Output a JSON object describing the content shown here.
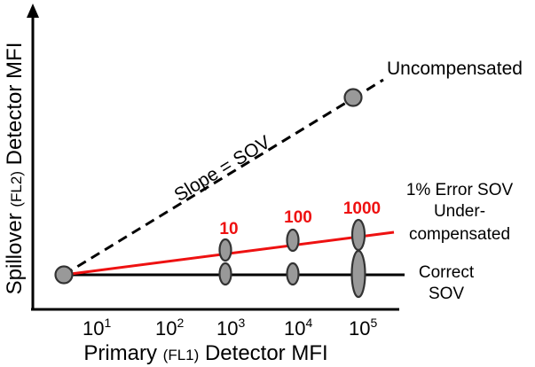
{
  "figure": {
    "y_axis_title": {
      "pre": "Spillover ",
      "mid": "(FL2)",
      "post": " Detector MFI"
    },
    "x_axis_title": {
      "pre": "Primary ",
      "mid": "(FL1)",
      "post": " Detector MFI"
    },
    "x_ticks": [
      {
        "base": "10",
        "exp": "1"
      },
      {
        "base": "10",
        "exp": "2"
      },
      {
        "base": "10",
        "exp": "3"
      },
      {
        "base": "10",
        "exp": "4"
      },
      {
        "base": "10",
        "exp": "5"
      }
    ],
    "labels": {
      "uncompensated": "Uncompensated",
      "slope": "Slope = SOV",
      "error_line1": "1% Error SOV",
      "error_line2": "Under-",
      "error_line3": "compensated",
      "correct_line1": "Correct",
      "correct_line2": "SOV"
    },
    "red_numbers": [
      "10",
      "100",
      "1000"
    ],
    "colors": {
      "axis": "#000000",
      "correct_line": "#000000",
      "error_line": "#ee1111",
      "uncompensated_line": "#000000",
      "marker_fill": "#999999",
      "marker_stroke": "#333333",
      "red_label": "#ee1111"
    }
  }
}
